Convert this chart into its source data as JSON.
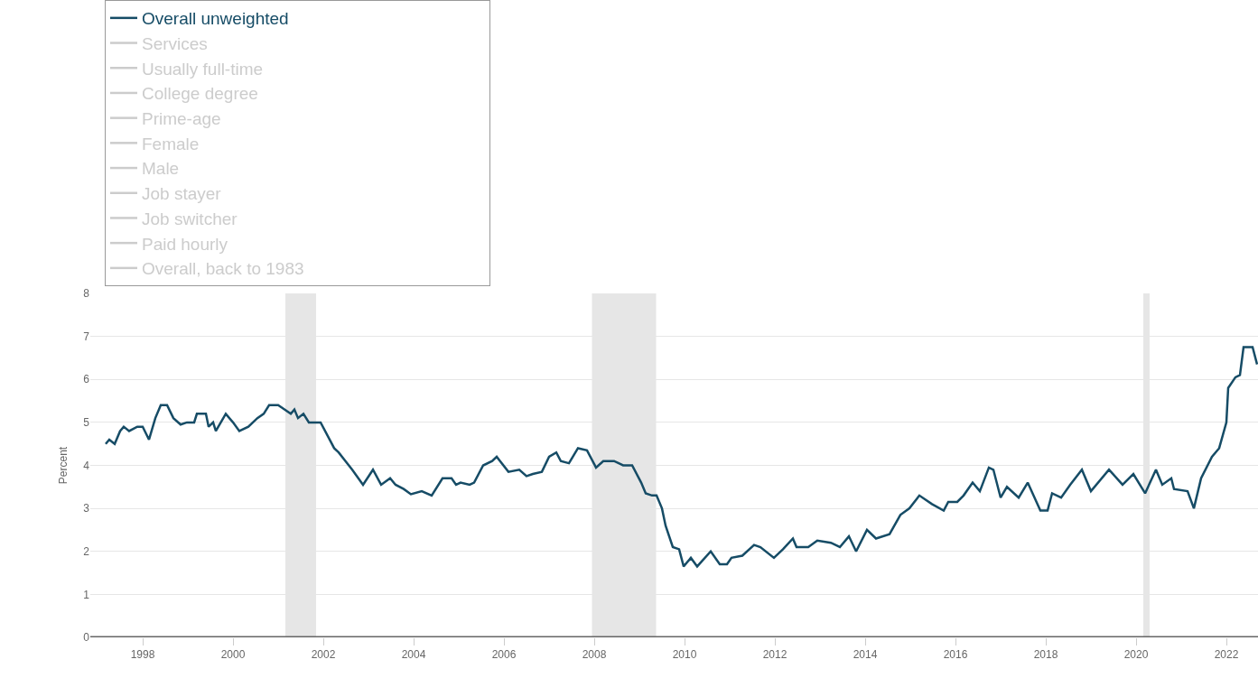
{
  "chart_data": {
    "type": "line",
    "ylabel": "Percent",
    "xlim": [
      1996.84,
      2022.7
    ],
    "ylim": [
      0,
      8
    ],
    "xticks": [
      1998,
      2000,
      2002,
      2004,
      2006,
      2008,
      2010,
      2012,
      2014,
      2016,
      2018,
      2020,
      2022
    ],
    "yticks": [
      0,
      1,
      2,
      3,
      4,
      5,
      6,
      7,
      8
    ],
    "grid": "y",
    "legend": "top",
    "marker": "none",
    "line_style": "solid",
    "bands": [
      {
        "axis": "x",
        "from": 2001.16,
        "to": 2001.84,
        "color": "#e6e6e6"
      },
      {
        "axis": "x",
        "from": 2007.95,
        "to": 2009.37,
        "color": "#e6e6e6"
      },
      {
        "axis": "x",
        "from": 2020.16,
        "to": 2020.3,
        "color": "#e6e6e6"
      }
    ],
    "series": [
      {
        "name": "Overall unweighted",
        "color": "#164c66",
        "x": [
          1997.18,
          1997.26,
          1997.38,
          1997.5,
          1997.58,
          1997.7,
          1997.88,
          1998.0,
          1998.14,
          1998.28,
          1998.4,
          1998.54,
          1998.68,
          1998.84,
          1998.98,
          1999.14,
          1999.2,
          1999.4,
          1999.46,
          1999.56,
          1999.62,
          1999.84,
          2000.0,
          2000.14,
          2000.34,
          2000.54,
          2000.68,
          2000.8,
          2001.0,
          2001.14,
          2001.28,
          2001.36,
          2001.44,
          2001.56,
          2001.68,
          2001.94,
          2002.14,
          2002.24,
          2002.34,
          2002.64,
          2002.88,
          2003.1,
          2003.28,
          2003.48,
          2003.6,
          2003.78,
          2003.94,
          2004.18,
          2004.4,
          2004.64,
          2004.84,
          2004.94,
          2005.04,
          2005.24,
          2005.34,
          2005.54,
          2005.74,
          2005.84,
          2006.1,
          2006.34,
          2006.5,
          2006.64,
          2006.84,
          2007.0,
          2007.16,
          2007.26,
          2007.44,
          2007.64,
          2007.84,
          2008.04,
          2008.2,
          2008.44,
          2008.64,
          2008.84,
          2009.04,
          2009.14,
          2009.28,
          2009.38,
          2009.5,
          2009.58,
          2009.74,
          2009.88,
          2009.98,
          2010.14,
          2010.28,
          2010.58,
          2010.78,
          2010.94,
          2011.04,
          2011.28,
          2011.54,
          2011.68,
          2011.98,
          2012.18,
          2012.4,
          2012.48,
          2012.74,
          2012.94,
          2013.24,
          2013.44,
          2013.64,
          2013.8,
          2014.04,
          2014.24,
          2014.54,
          2014.78,
          2014.98,
          2015.2,
          2015.48,
          2015.74,
          2015.84,
          2016.04,
          2016.18,
          2016.38,
          2016.54,
          2016.74,
          2016.84,
          2017.0,
          2017.14,
          2017.4,
          2017.6,
          2017.88,
          2018.04,
          2018.14,
          2018.34,
          2018.54,
          2018.8,
          2019.0,
          2019.4,
          2019.7,
          2019.94,
          2020.2,
          2020.44,
          2020.58,
          2020.78,
          2020.84,
          2021.14,
          2021.28,
          2021.44,
          2021.68,
          2021.84,
          2022.0,
          2022.04,
          2022.2,
          2022.3,
          2022.38,
          2022.58,
          2022.68
        ],
        "values": [
          4.5,
          4.6,
          4.5,
          4.8,
          4.9,
          4.8,
          4.9,
          4.9,
          4.6,
          5.1,
          5.4,
          5.4,
          5.1,
          4.95,
          5.0,
          5.0,
          5.2,
          5.2,
          4.9,
          5.0,
          4.8,
          5.2,
          5.0,
          4.8,
          4.9,
          5.1,
          5.2,
          5.4,
          5.4,
          5.3,
          5.2,
          5.3,
          5.1,
          5.2,
          5.0,
          5.0,
          4.6,
          4.4,
          4.3,
          3.9,
          3.55,
          3.9,
          3.55,
          3.7,
          3.55,
          3.45,
          3.33,
          3.4,
          3.3,
          3.7,
          3.7,
          3.55,
          3.6,
          3.55,
          3.6,
          4.0,
          4.1,
          4.2,
          3.85,
          3.9,
          3.75,
          3.8,
          3.85,
          4.2,
          4.3,
          4.1,
          4.05,
          4.4,
          4.35,
          3.95,
          4.1,
          4.1,
          4.0,
          4.0,
          3.6,
          3.35,
          3.3,
          3.3,
          3.0,
          2.6,
          2.1,
          2.05,
          1.65,
          1.85,
          1.65,
          2.0,
          1.7,
          1.7,
          1.85,
          1.9,
          2.15,
          2.1,
          1.85,
          2.05,
          2.3,
          2.1,
          2.1,
          2.25,
          2.2,
          2.1,
          2.35,
          2.0,
          2.5,
          2.3,
          2.4,
          2.85,
          3.0,
          3.3,
          3.1,
          2.95,
          3.15,
          3.15,
          3.3,
          3.6,
          3.4,
          3.95,
          3.9,
          3.25,
          3.5,
          3.25,
          3.6,
          2.95,
          2.95,
          3.35,
          3.25,
          3.55,
          3.9,
          3.4,
          3.9,
          3.55,
          3.8,
          3.35,
          3.9,
          3.55,
          3.7,
          3.45,
          3.4,
          3.0,
          3.7,
          4.2,
          4.4,
          5.0,
          5.8,
          6.05,
          6.1,
          6.75,
          6.75,
          6.35
        ]
      },
      {
        "name": "Services",
        "color": "#cccccc",
        "values": [
          null
        ]
      },
      {
        "name": "Usually full-time",
        "color": "#cccccc",
        "values": [
          null
        ]
      },
      {
        "name": "College degree",
        "color": "#cccccc",
        "values": [
          null
        ]
      },
      {
        "name": "Prime-age",
        "color": "#cccccc",
        "values": [
          null
        ]
      },
      {
        "name": "Female",
        "color": "#cccccc",
        "values": [
          null
        ]
      },
      {
        "name": "Male",
        "color": "#cccccc",
        "values": [
          null
        ]
      },
      {
        "name": "Job stayer",
        "color": "#cccccc",
        "values": [
          null
        ]
      },
      {
        "name": "Job switcher",
        "color": "#cccccc",
        "values": [
          null
        ]
      },
      {
        "name": "Paid hourly",
        "color": "#cccccc",
        "values": [
          null
        ]
      },
      {
        "name": "Overall, back to 1983",
        "color": "#cccccc",
        "values": [
          null
        ]
      }
    ]
  }
}
